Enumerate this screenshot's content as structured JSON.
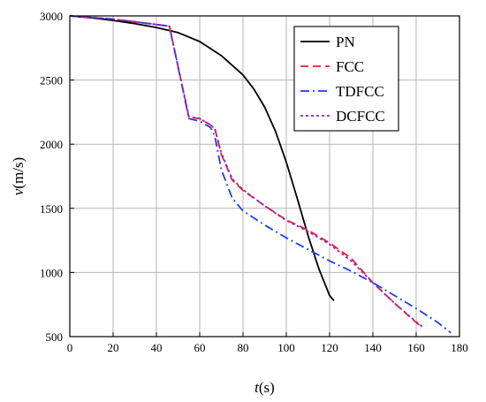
{
  "chart_data": {
    "type": "line",
    "xlabel": "t(s)",
    "ylabel": "v(m/s)",
    "xlim": [
      0,
      180
    ],
    "ylim": [
      500,
      3000
    ],
    "xticks": [
      0,
      20,
      40,
      60,
      80,
      100,
      120,
      140,
      160,
      180
    ],
    "yticks": [
      500,
      1000,
      1500,
      2000,
      2500,
      3000
    ],
    "grid": true,
    "legend_position": "top-right",
    "series": [
      {
        "name": "PN",
        "color": "#000000",
        "dash": "solid",
        "x": [
          0,
          10,
          20,
          30,
          40,
          50,
          60,
          70,
          80,
          85,
          90,
          95,
          100,
          105,
          110,
          115,
          120,
          122
        ],
        "y": [
          3000,
          2985,
          2965,
          2940,
          2910,
          2870,
          2800,
          2690,
          2540,
          2430,
          2290,
          2100,
          1860,
          1580,
          1290,
          1030,
          820,
          780
        ]
      },
      {
        "name": "FCC",
        "color": "#e8232a",
        "dash": "dash",
        "x": [
          0,
          20,
          46,
          55,
          60,
          65,
          67,
          70,
          75,
          80,
          90,
          100,
          110,
          120,
          130,
          140,
          150,
          160,
          163
        ],
        "y": [
          3000,
          2975,
          2920,
          2210,
          2200,
          2150,
          2120,
          1920,
          1720,
          1640,
          1520,
          1410,
          1330,
          1230,
          1110,
          920,
          760,
          610,
          570
        ]
      },
      {
        "name": "TDFCC",
        "color": "#1f3fe0",
        "dash": "dashdot",
        "x": [
          0,
          20,
          46,
          55,
          60,
          65,
          67,
          70,
          75,
          80,
          90,
          100,
          110,
          120,
          130,
          140,
          150,
          160,
          170,
          176
        ],
        "y": [
          3000,
          2975,
          2920,
          2200,
          2180,
          2130,
          2060,
          1800,
          1580,
          1480,
          1370,
          1270,
          1180,
          1090,
          1010,
          920,
          820,
          720,
          610,
          530
        ]
      },
      {
        "name": "DCFCC",
        "color": "#9b1fc8",
        "dash": "dot",
        "x": [
          0,
          20,
          46,
          55,
          60,
          65,
          67,
          70,
          75,
          80,
          90,
          100,
          110,
          120,
          130,
          140,
          150,
          160,
          163
        ],
        "y": [
          3000,
          2975,
          2920,
          2215,
          2200,
          2150,
          2120,
          1930,
          1730,
          1645,
          1520,
          1405,
          1320,
          1220,
          1090,
          920,
          760,
          615,
          575
        ]
      }
    ]
  }
}
